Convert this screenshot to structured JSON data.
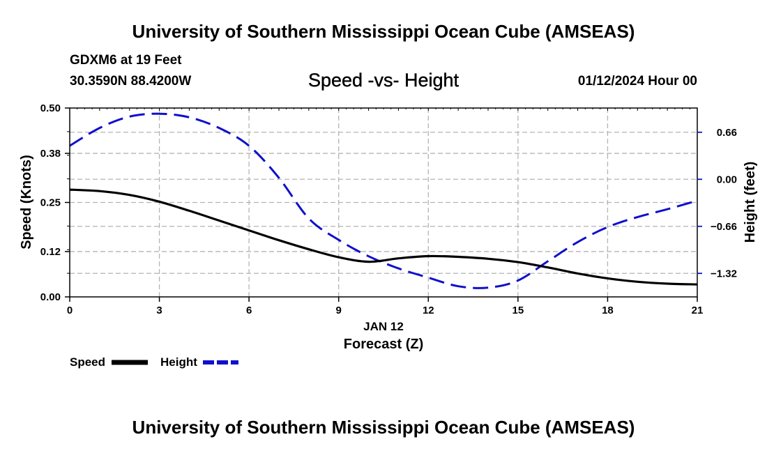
{
  "header": {
    "title_top": "University of Southern Mississippi Ocean Cube (AMSEAS)",
    "station": "GDXM6 at 19 Feet",
    "coordinates": "30.3590N  88.4200W",
    "chart_title": "Speed -vs- Height",
    "datetime": "01/12/2024 Hour 00"
  },
  "footer": {
    "title_bottom": "University of Southern Mississippi Ocean Cube (AMSEAS)"
  },
  "colors": {
    "speed": "#000000",
    "height": "#1010cc",
    "grid": "#b4b4b4"
  },
  "chart_data": {
    "type": "line",
    "title": "Speed -vs- Height",
    "xlabel": "Forecast (Z)",
    "x_sublabel": "JAN 12",
    "ylabel": "Speed (Knots)",
    "y2label": "Height (feet)",
    "xlim": [
      0,
      21
    ],
    "ylim": [
      0,
      0.5
    ],
    "y2lim": [
      -1.65,
      1.0
    ],
    "x_ticks": [
      0,
      3,
      6,
      9,
      12,
      15,
      18,
      21
    ],
    "y_ticks": [
      0.0,
      0.12,
      0.25,
      0.38,
      0.5
    ],
    "y_tick_labels": [
      "0.00",
      "0.12",
      "0.25",
      "0.38",
      "0.50"
    ],
    "y2_ticks": [
      0.66,
      0.0,
      -0.66,
      -1.32
    ],
    "y2_tick_labels": [
      "0.66",
      "0.00",
      "−0.66",
      "−1.32"
    ],
    "grid": true,
    "legend": [
      "Speed",
      "Height"
    ],
    "series": [
      {
        "name": "Speed",
        "axis": "left",
        "style": "solid",
        "x": [
          0,
          1,
          2,
          3,
          4,
          5,
          6,
          7,
          8,
          9,
          10,
          11,
          12,
          13,
          14,
          15,
          16,
          17,
          18,
          19,
          20,
          21
        ],
        "values": [
          0.284,
          0.28,
          0.27,
          0.252,
          0.228,
          0.202,
          0.176,
          0.15,
          0.126,
          0.105,
          0.093,
          0.102,
          0.108,
          0.106,
          0.101,
          0.092,
          0.078,
          0.062,
          0.049,
          0.04,
          0.035,
          0.033
        ]
      },
      {
        "name": "Height",
        "axis": "right",
        "style": "dashed",
        "x": [
          0,
          1,
          2,
          3,
          4,
          5,
          6,
          7,
          8,
          9,
          10,
          11,
          12,
          13,
          14,
          15,
          16,
          17,
          18,
          19,
          20,
          21
        ],
        "values": [
          0.47,
          0.72,
          0.88,
          0.92,
          0.87,
          0.72,
          0.47,
          0.02,
          -0.55,
          -0.85,
          -1.08,
          -1.25,
          -1.38,
          -1.5,
          -1.52,
          -1.42,
          -1.15,
          -0.88,
          -0.67,
          -0.53,
          -0.42,
          -0.3
        ]
      }
    ]
  }
}
